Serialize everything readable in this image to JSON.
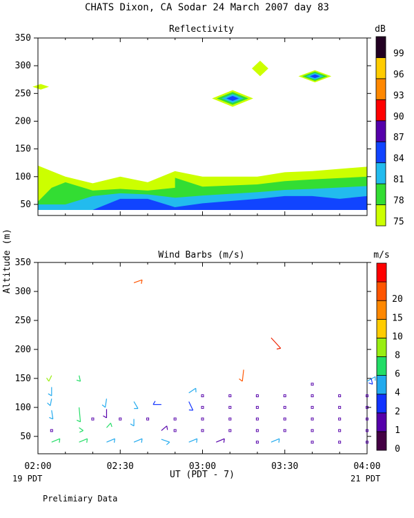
{
  "title": "CHATS Dixon, CA  Sodar  24 March 2007  day  83",
  "y_axis_label": "Altitude (m)",
  "x_axis_label": "UT  (PDT - 7)",
  "left_footer": "19 PDT",
  "right_footer": "21 PDT",
  "note": "Prelimiary Data",
  "chart_data": [
    {
      "type": "heatmap",
      "title": "Reflectivity",
      "unit_label": "dB",
      "x_ticks": [
        "02:00",
        "02:30",
        "03:00",
        "03:30",
        "04:00"
      ],
      "y_ticks": [
        50,
        100,
        150,
        200,
        250,
        300,
        350
      ],
      "xlim": [
        "02:00",
        "04:00"
      ],
      "ylim": [
        30,
        350
      ],
      "colorbar": {
        "labels": [
          "75",
          "78",
          "81",
          "84",
          "87",
          "90",
          "93",
          "96",
          "99"
        ],
        "colors": [
          "#ccff00",
          "#33dd33",
          "#22bbee",
          "#1144ff",
          "#5500aa",
          "#ff0000",
          "#ff8800",
          "#ffcc00",
          "#220022"
        ]
      },
      "layers": [
        {
          "level": "75",
          "color": "#ccff00",
          "top": [
            [
              2.0,
              120
            ],
            [
              2.083,
              110
            ],
            [
              2.167,
              100
            ],
            [
              2.333,
              88
            ],
            [
              2.5,
              100
            ],
            [
              2.667,
              90
            ],
            [
              2.833,
              110
            ],
            [
              3.0,
              100
            ],
            [
              3.333,
              100
            ],
            [
              3.5,
              108
            ],
            [
              3.667,
              110
            ],
            [
              4.0,
              118
            ]
          ]
        },
        {
          "level": "78",
          "color": "#33dd33",
          "top": [
            [
              2.0,
              55
            ],
            [
              2.083,
              80
            ],
            [
              2.167,
              90
            ],
            [
              2.333,
              75
            ],
            [
              2.5,
              78
            ],
            [
              2.667,
              75
            ],
            [
              2.833,
              80
            ],
            [
              2.833,
              98
            ],
            [
              3.0,
              82
            ],
            [
              3.333,
              86
            ],
            [
              3.5,
              92
            ],
            [
              3.667,
              95
            ],
            [
              4.0,
              100
            ]
          ]
        },
        {
          "level": "81",
          "color": "#22bbee",
          "top": [
            [
              2.0,
              50
            ],
            [
              2.167,
              50
            ],
            [
              2.333,
              65
            ],
            [
              2.5,
              70
            ],
            [
              2.667,
              68
            ],
            [
              2.833,
              62
            ],
            [
              3.0,
              66
            ],
            [
              3.333,
              72
            ],
            [
              3.5,
              76
            ],
            [
              3.667,
              78
            ],
            [
              4.0,
              83
            ]
          ]
        },
        {
          "level": "84",
          "color": "#1144ff",
          "top": [
            [
              2.333,
              40
            ],
            [
              2.5,
              60
            ],
            [
              2.667,
              60
            ],
            [
              2.833,
              45
            ],
            [
              3.0,
              52
            ],
            [
              3.333,
              60
            ],
            [
              3.5,
              65
            ],
            [
              3.667,
              65
            ],
            [
              3.833,
              60
            ],
            [
              4.0,
              65
            ]
          ]
        }
      ],
      "blobs": [
        {
          "x": 2.017,
          "y": 262,
          "halfwidth_x": 0.05,
          "halfheight_y": 5,
          "levels": [
            "75"
          ]
        },
        {
          "x": 3.183,
          "y": 241,
          "halfwidth_x": 0.125,
          "halfheight_y": 15,
          "levels": [
            "75",
            "78",
            "81",
            "84"
          ]
        },
        {
          "x": 3.35,
          "y": 295,
          "halfwidth_x": 0.05,
          "halfheight_y": 14,
          "levels": [
            "75"
          ]
        },
        {
          "x": 3.683,
          "y": 281,
          "halfwidth_x": 0.1,
          "halfheight_y": 11,
          "levels": [
            "75",
            "78",
            "81",
            "84"
          ]
        }
      ]
    },
    {
      "type": "scatter",
      "title": "Wind Barbs (m/s)",
      "unit_label": "m/s",
      "x_ticks": [
        "02:00",
        "02:30",
        "03:00",
        "03:30",
        "04:00"
      ],
      "y_ticks": [
        50,
        100,
        150,
        200,
        250,
        300,
        350
      ],
      "xlim": [
        "02:00",
        "04:00"
      ],
      "ylim": [
        20,
        350
      ],
      "colorbar": {
        "labels": [
          "0",
          "1",
          "2",
          "4",
          "6",
          "8",
          "10",
          "15",
          "20"
        ],
        "colors": [
          "#440044",
          "#5500aa",
          "#1133ff",
          "#22aaee",
          "#22dd66",
          "#99ee11",
          "#ffcc00",
          "#ff8800",
          "#ff5500",
          "#ff0000"
        ]
      },
      "barbs": [
        {
          "x": 2.083,
          "y": 155,
          "dx": -0.017,
          "dy": -10,
          "color": "#99ee11"
        },
        {
          "x": 2.083,
          "y": 135,
          "dx": 0.0,
          "dy": -15,
          "color": "#22aaee"
        },
        {
          "x": 2.083,
          "y": 115,
          "dx": -0.008,
          "dy": -12,
          "color": "#22aaee"
        },
        {
          "x": 2.083,
          "y": 95,
          "dx": 0.008,
          "dy": -15,
          "color": "#22aaee"
        },
        {
          "x": 2.083,
          "y": 40,
          "dx": 0.05,
          "dy": 6,
          "color": "#22dd66"
        },
        {
          "x": 2.25,
          "y": 155,
          "dx": 0.008,
          "dy": -10,
          "color": "#22dd66"
        },
        {
          "x": 2.25,
          "y": 100,
          "dx": 0.008,
          "dy": -25,
          "color": "#22dd66"
        },
        {
          "x": 2.25,
          "y": 65,
          "dx": 0.025,
          "dy": -5,
          "color": "#22dd66"
        },
        {
          "x": 2.25,
          "y": 40,
          "dx": 0.05,
          "dy": 6,
          "color": "#22dd66"
        },
        {
          "x": 2.417,
          "y": 115,
          "dx": -0.008,
          "dy": -15,
          "color": "#22aaee"
        },
        {
          "x": 2.417,
          "y": 97,
          "dx": 0.0,
          "dy": -15,
          "color": "#5500aa"
        },
        {
          "x": 2.417,
          "y": 65,
          "dx": 0.025,
          "dy": 8,
          "color": "#22dd66"
        },
        {
          "x": 2.417,
          "y": 40,
          "dx": 0.05,
          "dy": 6,
          "color": "#22aaee"
        },
        {
          "x": 2.583,
          "y": 315,
          "dx": 0.05,
          "dy": 5,
          "color": "#ff5500"
        },
        {
          "x": 2.583,
          "y": 110,
          "dx": 0.025,
          "dy": -12,
          "color": "#22aaee"
        },
        {
          "x": 2.583,
          "y": 80,
          "dx": 0.0,
          "dy": -12,
          "color": "#22aaee"
        },
        {
          "x": 2.583,
          "y": 40,
          "dx": 0.05,
          "dy": 6,
          "color": "#22aaee"
        },
        {
          "x": 2.75,
          "y": 105,
          "dx": -0.05,
          "dy": 0,
          "color": "#1133ff"
        },
        {
          "x": 2.75,
          "y": 60,
          "dx": 0.033,
          "dy": 8,
          "color": "#5500aa"
        },
        {
          "x": 2.75,
          "y": 45,
          "dx": 0.05,
          "dy": -5,
          "color": "#22aaee"
        },
        {
          "x": 2.917,
          "y": 125,
          "dx": 0.042,
          "dy": 8,
          "color": "#22aaee"
        },
        {
          "x": 2.917,
          "y": 110,
          "dx": 0.025,
          "dy": -15,
          "color": "#1133ff"
        },
        {
          "x": 2.917,
          "y": 40,
          "dx": 0.05,
          "dy": 6,
          "color": "#22aaee"
        },
        {
          "x": 3.083,
          "y": 40,
          "dx": 0.05,
          "dy": 6,
          "color": "#5500aa"
        },
        {
          "x": 3.25,
          "y": 165,
          "dx": -0.008,
          "dy": -20,
          "color": "#ff5500"
        },
        {
          "x": 3.417,
          "y": 220,
          "dx": 0.058,
          "dy": -18,
          "color": "#ee2200"
        },
        {
          "x": 3.417,
          "y": 40,
          "dx": 0.05,
          "dy": 6,
          "color": "#22aaee"
        },
        {
          "x": 4.0,
          "y": 145,
          "dx": 0.05,
          "dy": 8,
          "color": "#22aaee"
        },
        {
          "x": 4.025,
          "y": 150,
          "dx": 0.008,
          "dy": -10,
          "color": "#1133ff"
        }
      ],
      "calm_points": [
        [
          2.083,
          60
        ],
        [
          2.333,
          80
        ],
        [
          2.5,
          80
        ],
        [
          2.667,
          80
        ],
        [
          2.833,
          60
        ],
        [
          2.833,
          80
        ],
        [
          3.0,
          60
        ],
        [
          3.0,
          80
        ],
        [
          3.0,
          100
        ],
        [
          3.0,
          120
        ],
        [
          3.167,
          60
        ],
        [
          3.167,
          80
        ],
        [
          3.167,
          100
        ],
        [
          3.167,
          120
        ],
        [
          3.333,
          40
        ],
        [
          3.333,
          60
        ],
        [
          3.333,
          80
        ],
        [
          3.333,
          100
        ],
        [
          3.333,
          120
        ],
        [
          3.5,
          60
        ],
        [
          3.5,
          80
        ],
        [
          3.5,
          100
        ],
        [
          3.5,
          120
        ],
        [
          3.667,
          40
        ],
        [
          3.667,
          60
        ],
        [
          3.667,
          80
        ],
        [
          3.667,
          100
        ],
        [
          3.667,
          120
        ],
        [
          3.667,
          140
        ],
        [
          3.833,
          40
        ],
        [
          3.833,
          60
        ],
        [
          3.833,
          80
        ],
        [
          3.833,
          100
        ],
        [
          3.833,
          120
        ],
        [
          4.0,
          40
        ],
        [
          4.0,
          60
        ],
        [
          4.0,
          80
        ],
        [
          4.0,
          100
        ],
        [
          4.0,
          120
        ]
      ]
    }
  ]
}
